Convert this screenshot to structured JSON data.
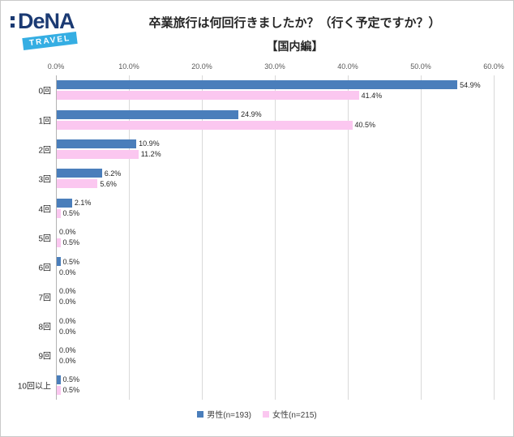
{
  "logo": {
    "brand": "DeNA",
    "badge": "TRAVEL"
  },
  "header": {
    "title": "卒業旅行は何回行きましたか？（行く予定ですか？）",
    "subtitle": "【国内編】"
  },
  "chart_data": {
    "type": "bar",
    "orientation": "horizontal",
    "title": "卒業旅行は何回行きましたか？（行く予定ですか？）【国内編】",
    "categories": [
      "0回",
      "1回",
      "2回",
      "3回",
      "4回",
      "5回",
      "6回",
      "7回",
      "8回",
      "9回",
      "10回以上"
    ],
    "series": [
      {
        "name": "男性(n=193)",
        "color": "#4a7ebb",
        "values": [
          54.9,
          24.9,
          10.9,
          6.2,
          2.1,
          0.0,
          0.5,
          0.0,
          0.0,
          0.0,
          0.5
        ]
      },
      {
        "name": "女性(n=215)",
        "color": "#fbc7f0",
        "values": [
          41.4,
          40.5,
          11.2,
          5.6,
          0.5,
          0.5,
          0.0,
          0.0,
          0.0,
          0.0,
          0.5
        ]
      }
    ],
    "xlim": [
      0,
      60
    ],
    "xticks": [
      "0.0%",
      "10.0%",
      "20.0%",
      "30.0%",
      "40.0%",
      "50.0%",
      "60.0%"
    ],
    "value_format": "percent1",
    "grid": true,
    "legend_position": "bottom"
  }
}
